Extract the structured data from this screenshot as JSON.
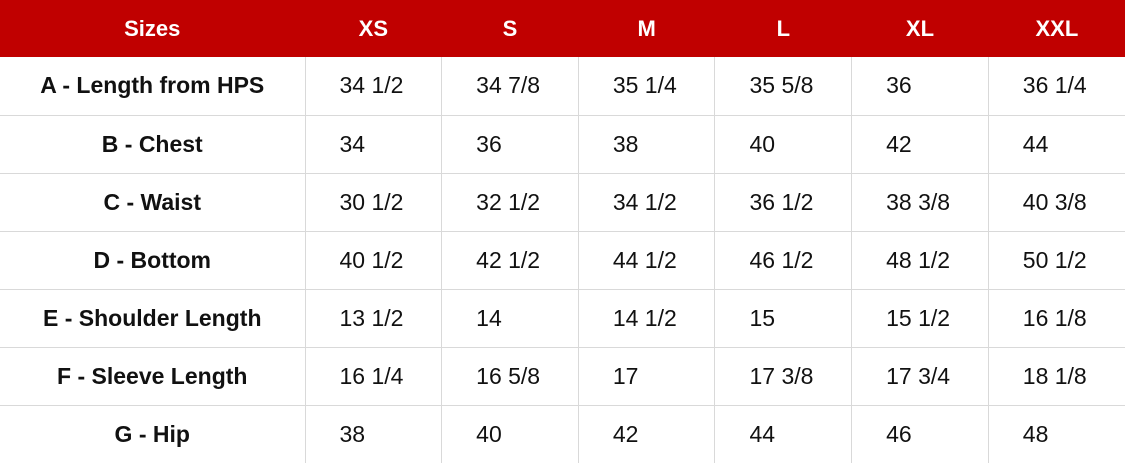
{
  "table": {
    "header": [
      "Sizes",
      "XS",
      "S",
      "M",
      "L",
      "XL",
      "XXL"
    ],
    "rows": [
      [
        "A - Length from HPS",
        "34 1/2",
        "34 7/8",
        "35 1/4",
        "35 5/8",
        "36",
        "36 1/4"
      ],
      [
        "B - Chest",
        "34",
        "36",
        "38",
        "40",
        "42",
        "44"
      ],
      [
        "C - Waist",
        "30 1/2",
        "32 1/2",
        "34 1/2",
        "36 1/2",
        "38 3/8",
        "40 3/8"
      ],
      [
        "D - Bottom",
        "40 1/2",
        "42 1/2",
        "44 1/2",
        "46 1/2",
        "48 1/2",
        "50 1/2"
      ],
      [
        "E - Shoulder Length",
        "13 1/2",
        "14",
        "14 1/2",
        "15",
        "15 1/2",
        "16 1/8"
      ],
      [
        "F - Sleeve Length",
        "16 1/4",
        "16 5/8",
        "17",
        "17 3/8",
        "17 3/4",
        "18 1/8"
      ],
      [
        "G - Hip",
        "38",
        "40",
        "42",
        "44",
        "46",
        "48"
      ]
    ]
  }
}
